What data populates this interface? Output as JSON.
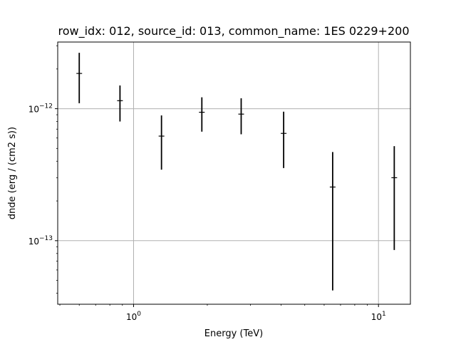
{
  "chart_data": {
    "type": "scatter",
    "title": "row_idx: 012, source_id: 013, common_name: 1ES 0229+200",
    "xlabel": "Energy (TeV)",
    "ylabel": "dnde (erg / (cm2 s))",
    "x_scale": "log",
    "y_scale": "log",
    "xlim": [
      0.49,
      13.5
    ],
    "ylim": [
      3.3e-14,
      3.2e-12
    ],
    "x_ticks": [
      {
        "value": 1,
        "base": "10",
        "exp": "0"
      },
      {
        "value": 10,
        "base": "10",
        "exp": "1"
      }
    ],
    "y_ticks": [
      {
        "value": 1e-13,
        "base": "10",
        "exp": "−13"
      },
      {
        "value": 1e-12,
        "base": "10",
        "exp": "−12"
      }
    ],
    "grid": true,
    "legend": "none",
    "color": "#000000",
    "grid_color": "#b0b0b0",
    "series": [
      {
        "x": [
          0.6,
          0.88,
          1.3,
          1.9,
          2.75,
          4.1,
          6.5,
          11.6
        ],
        "y": [
          1.85e-12,
          1.15e-12,
          6.2e-13,
          9.4e-13,
          9.1e-13,
          6.5e-13,
          2.55e-13,
          3e-13
        ],
        "y_low": [
          1.1e-12,
          8e-13,
          3.45e-13,
          6.7e-13,
          6.4e-13,
          3.55e-13,
          4.2e-14,
          8.5e-14
        ],
        "y_high": [
          2.65e-12,
          1.5e-12,
          8.9e-13,
          1.22e-12,
          1.2e-12,
          9.5e-13,
          4.7e-13,
          5.2e-13
        ]
      }
    ]
  }
}
